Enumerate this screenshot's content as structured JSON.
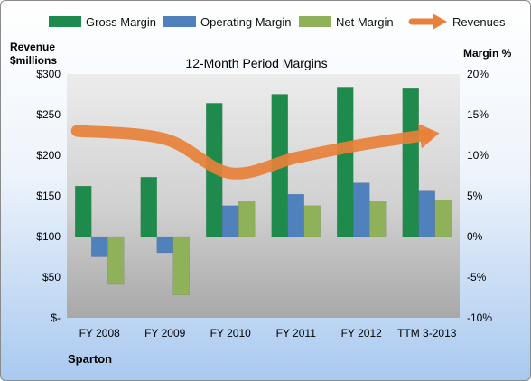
{
  "chart_data": {
    "type": "bar",
    "title": "12-Month Period Margins",
    "company": "Sparton",
    "left_axis_label": [
      "Revenue",
      "$millions"
    ],
    "right_axis_label": "Margin %",
    "categories": [
      "FY 2008",
      "FY 2009",
      "FY 2010",
      "FY 2011",
      "FY 2012",
      "TTM 3-2013"
    ],
    "left_ticks": [
      "$300",
      "$250",
      "$200",
      "$150",
      "$100",
      "$50",
      "$-"
    ],
    "right_ticks": [
      "20%",
      "15%",
      "10%",
      "5%",
      "0%",
      "-5%",
      "-10%"
    ],
    "ylim_left": [
      0,
      300
    ],
    "ylim_right": [
      -10,
      20
    ],
    "grid": false,
    "legend_position": "top",
    "series": [
      {
        "name": "Gross Margin",
        "kind": "bar",
        "axis": "right",
        "color": "#1e8a4c",
        "values": [
          6.2,
          7.3,
          16.4,
          17.5,
          18.4,
          18.2
        ]
      },
      {
        "name": "Operating Margin",
        "kind": "bar",
        "axis": "right",
        "color": "#4f81bd",
        "values": [
          -2.5,
          -2.0,
          3.8,
          5.2,
          6.6,
          5.6
        ]
      },
      {
        "name": "Net Margin",
        "kind": "bar",
        "axis": "right",
        "color": "#8fb15a",
        "values": [
          -5.9,
          -7.2,
          4.3,
          3.8,
          4.3,
          4.5
        ]
      },
      {
        "name": "Revenues",
        "kind": "trend-arrow",
        "axis": "left",
        "color": "#e8803a",
        "values": [
          230,
          220,
          178,
          197,
          213,
          225
        ]
      }
    ]
  }
}
